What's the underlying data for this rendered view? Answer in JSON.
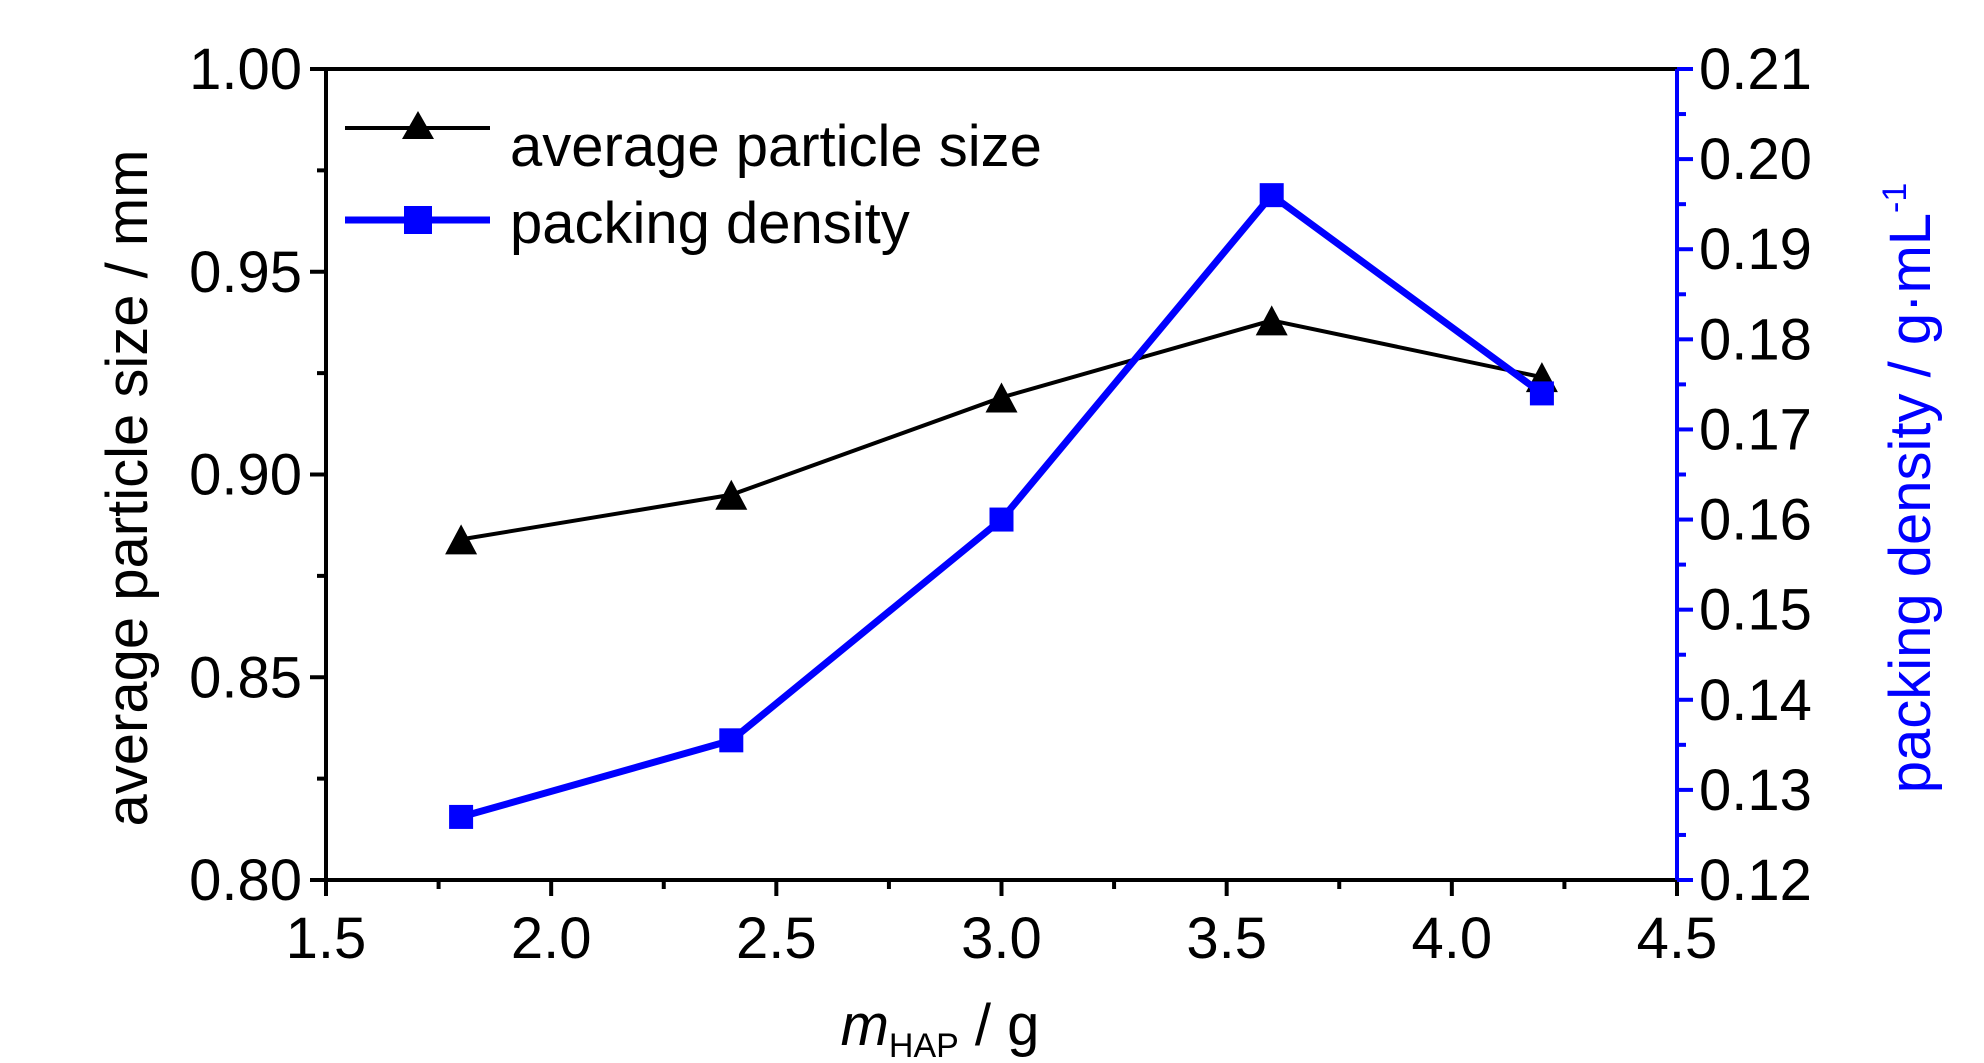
{
  "chart_data": {
    "type": "line",
    "x": [
      1.8,
      2.4,
      3.0,
      3.6,
      4.2
    ],
    "xlim": [
      1.5,
      4.5
    ],
    "xticks": [
      "1.5",
      "2.0",
      "2.5",
      "3.0",
      "3.5",
      "4.0",
      "4.5"
    ],
    "xlabel_main": "m",
    "xlabel_sub": "HAP",
    "xlabel_unit": " / g",
    "y_left": {
      "label": "average particle size / mm",
      "lim": [
        0.8,
        1.0
      ],
      "ticks": [
        "0.80",
        "0.85",
        "0.90",
        "0.95",
        "1.00"
      ],
      "color": "#000000"
    },
    "y_right": {
      "label_main": "packing density / g·mL",
      "label_sup": "-1",
      "lim": [
        0.12,
        0.21
      ],
      "ticks": [
        "0.12",
        "0.13",
        "0.14",
        "0.15",
        "0.16",
        "0.17",
        "0.18",
        "0.19",
        "0.20",
        "0.21"
      ],
      "color": "#0000ff"
    },
    "series": [
      {
        "name": "average particle size",
        "axis": "left",
        "marker": "triangle",
        "color": "#000000",
        "values": [
          0.884,
          0.895,
          0.919,
          0.938,
          0.924
        ]
      },
      {
        "name": "packing density",
        "axis": "right",
        "marker": "square",
        "color": "#0000ff",
        "values": [
          0.127,
          0.1355,
          0.16,
          0.196,
          0.174
        ]
      }
    ],
    "grid": false,
    "legend_position": "top-left"
  }
}
